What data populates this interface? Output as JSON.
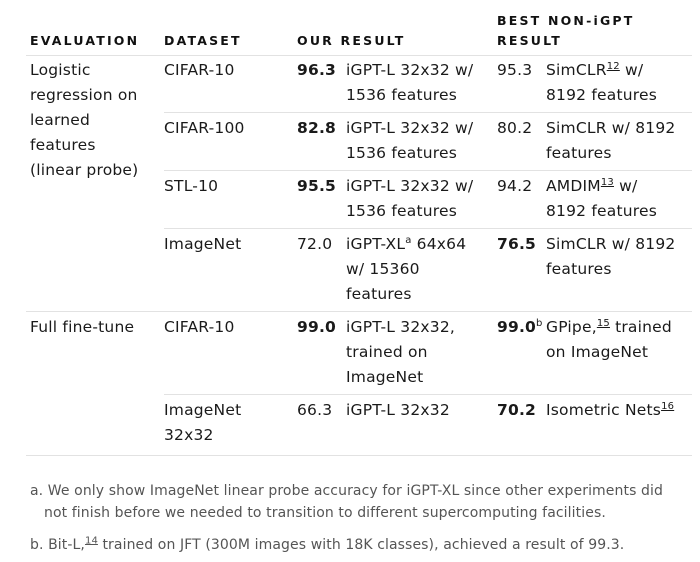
{
  "headers": {
    "evaluation": "EVALUATION",
    "dataset": "DATASET",
    "our_result": "OUR RESULT",
    "best_line1": "BEST NON-iGPT",
    "best_line2": "RESULT"
  },
  "linear": {
    "eval_lines": [
      "Logistic",
      "regression on",
      "learned",
      "features",
      "(linear probe)"
    ],
    "rows": [
      {
        "dataset": [
          "CIFAR-10"
        ],
        "our_val": "96.3",
        "our_bold": true,
        "our_model": [
          "iGPT-L 32x32 w/",
          "1536 features"
        ],
        "best_val": "95.3",
        "best_bold": false,
        "best_model_a": "SimCLR",
        "best_sup": "12",
        "best_model_b": " w/",
        "best_model_2": "8192 features"
      },
      {
        "dataset": [
          "CIFAR-100"
        ],
        "our_val": "82.8",
        "our_bold": true,
        "our_model": [
          "iGPT-L 32x32 w/",
          "1536 features"
        ],
        "best_val": "80.2",
        "best_bold": false,
        "best_model": [
          "SimCLR w/ 8192",
          "features"
        ]
      },
      {
        "dataset": [
          "STL-10"
        ],
        "our_val": "95.5",
        "our_bold": true,
        "our_model": [
          "iGPT-L 32x32 w/",
          "1536 features"
        ],
        "best_val": "94.2",
        "best_bold": false,
        "best_model_a": "AMDIM",
        "best_sup": "13",
        "best_model_b": " w/",
        "best_model_2": "8192 features"
      },
      {
        "dataset": [
          "ImageNet"
        ],
        "our_val": "72.0",
        "our_bold": false,
        "our_model_a": "iGPT-XL",
        "our_sup": "a",
        "our_model_b": " 64x64",
        "our_model_2": [
          "w/ 15360",
          "features"
        ],
        "best_val": "76.5",
        "best_bold": true,
        "best_model": [
          "SimCLR w/ 8192",
          "features"
        ]
      }
    ]
  },
  "finetune": {
    "eval_lines": [
      "Full fine-tune"
    ],
    "rows": [
      {
        "dataset": [
          "CIFAR-10"
        ],
        "our_val": "99.0",
        "our_bold": true,
        "our_model": [
          "iGPT-L 32x32,",
          "trained on",
          "ImageNet"
        ],
        "best_val": "99.0",
        "best_val_sup": "b",
        "best_bold": true,
        "best_model_a": "GPipe,",
        "best_sup": "15",
        "best_model_b": " trained",
        "best_model_2": "on ImageNet"
      },
      {
        "dataset": [
          "ImageNet",
          "32x32"
        ],
        "our_val": "66.3",
        "our_bold": false,
        "our_model": [
          "iGPT-L 32x32"
        ],
        "best_val": "70.2",
        "best_bold": true,
        "best_model_a": "Isometric Nets",
        "best_sup": "16",
        "best_model_b": ""
      }
    ]
  },
  "footnotes": {
    "a_line1": "a. We only show ImageNet linear probe accuracy for iGPT-XL since other experiments did",
    "a_line2": "not finish before we needed to transition to different supercomputing facilities.",
    "b_pre": "b. Bit-L,",
    "b_sup": "14",
    "b_post": " trained on JFT (300M images with 18K classes), achieved a result of 99.3."
  }
}
